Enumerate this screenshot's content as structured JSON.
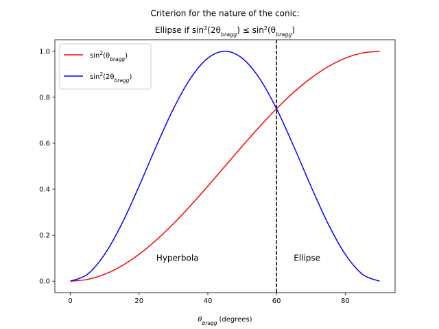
{
  "chart_data": {
    "type": "line",
    "title_line1": "Criterion for the nature of the conic:",
    "title_line2_prefix": "Ellipse if sin",
    "title_line2_mid": "(2θ",
    "title_line2_close": ") ≤ sin",
    "title_line2_open2": "(θ",
    "title_line2_end": ")",
    "sub_bragg": "bragg",
    "sup_2": "2",
    "xlabel_theta": "θ",
    "xlabel_units": "(degrees)",
    "xlim": [
      -4.5,
      94.5
    ],
    "ylim": [
      -0.05,
      1.05
    ],
    "xticks": [
      0,
      20,
      40,
      60,
      80
    ],
    "yticks": [
      0.0,
      0.2,
      0.4,
      0.6,
      0.8,
      1.0
    ],
    "xtick_labels": [
      "0",
      "20",
      "40",
      "60",
      "80"
    ],
    "ytick_labels": [
      "0.0",
      "0.2",
      "0.4",
      "0.6",
      "0.8",
      "1.0"
    ],
    "x": [
      0,
      5,
      10,
      15,
      20,
      25,
      30,
      35,
      40,
      45,
      50,
      55,
      60,
      65,
      70,
      75,
      80,
      85,
      90
    ],
    "series": [
      {
        "name_prefix": "sin",
        "name_arg": "(θ",
        "name_close": ")",
        "color": "#ff0000",
        "values": [
          0.0,
          0.0076,
          0.0302,
          0.067,
          0.117,
          0.1786,
          0.25,
          0.329,
          0.4132,
          0.5,
          0.5868,
          0.671,
          0.75,
          0.8214,
          0.883,
          0.933,
          0.9698,
          0.9924,
          1.0
        ]
      },
      {
        "name_prefix": "sin",
        "name_arg": "(2θ",
        "name_close": ")",
        "color": "#0000ff",
        "values": [
          0.0,
          0.0302,
          0.117,
          0.25,
          0.4132,
          0.5868,
          0.75,
          0.883,
          0.9698,
          1.0,
          0.9698,
          0.883,
          0.75,
          0.5868,
          0.4132,
          0.25,
          0.117,
          0.0302,
          0.0
        ]
      }
    ],
    "vline": {
      "x": 60,
      "color": "#000000",
      "style": "dashed"
    },
    "annotations": [
      {
        "text": "Hyperbola",
        "x": 25,
        "y": 0.1
      },
      {
        "text": "Ellipse",
        "x": 65,
        "y": 0.1
      }
    ],
    "legend": "upper left",
    "grid": false
  }
}
